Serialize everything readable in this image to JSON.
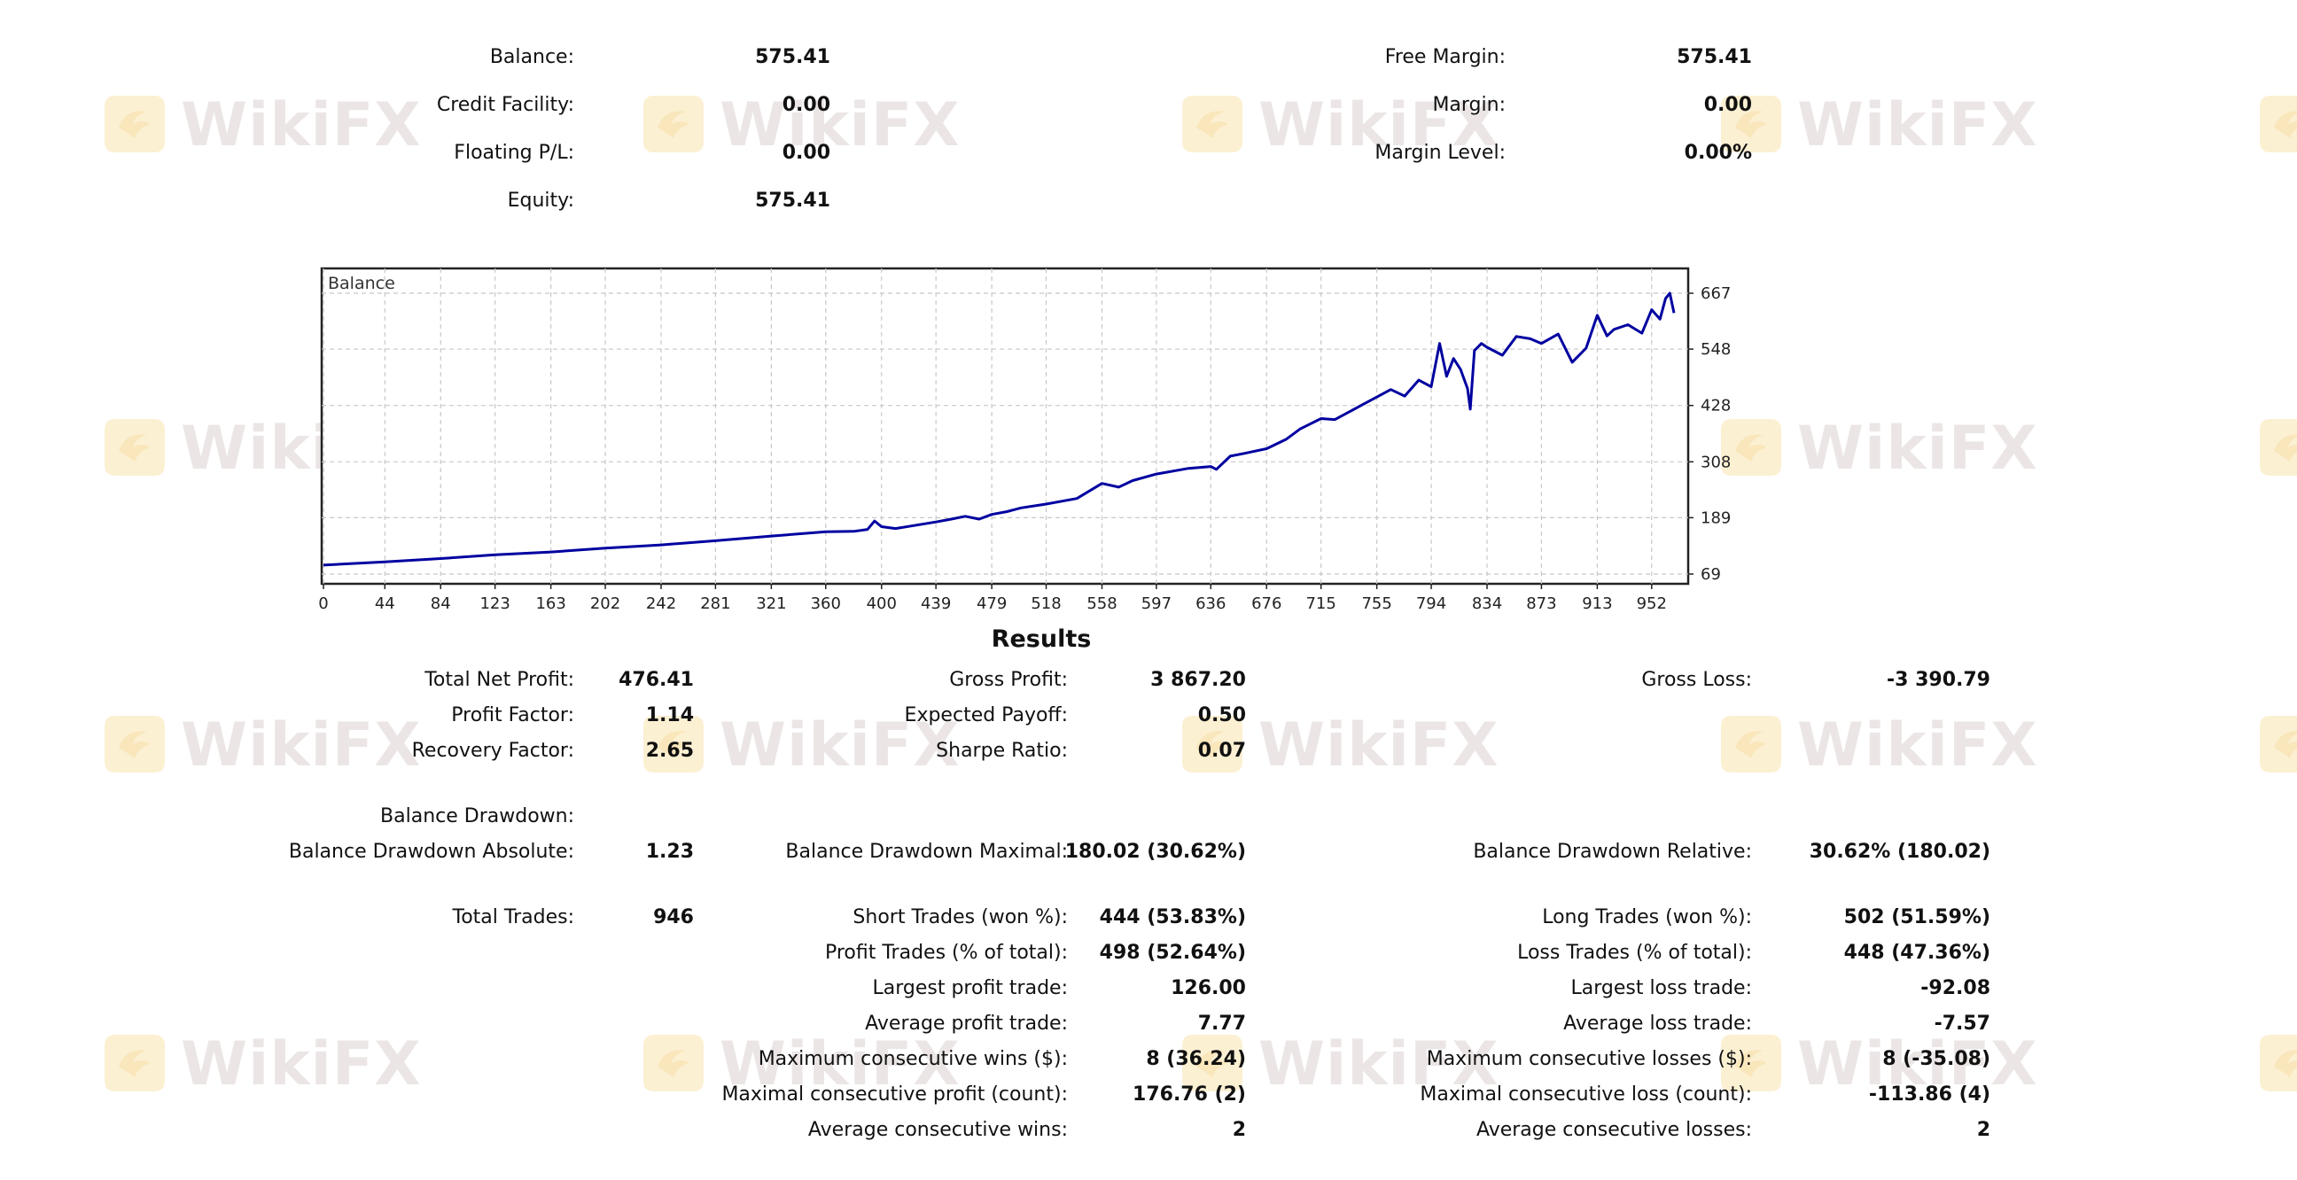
{
  "watermark": {
    "text": "WikiFX",
    "color": "#d9cfcc",
    "logo_color": "#fbe3a8"
  },
  "summary": {
    "balance_label": "Balance:",
    "balance": "575.41",
    "credit_label": "Credit Facility:",
    "credit": "0.00",
    "floating_label": "Floating P/L:",
    "floating": "0.00",
    "equity_label": "Equity:",
    "equity": "575.41",
    "free_margin_label": "Free Margin:",
    "free_margin": "575.41",
    "margin_label": "Margin:",
    "margin": "0.00",
    "margin_level_label": "Margin Level:",
    "margin_level": "0.00%"
  },
  "chart_data": {
    "type": "line",
    "title": "Balance",
    "line_color": "#0000a0",
    "x_ticks": [
      0,
      44,
      84,
      123,
      163,
      202,
      242,
      281,
      321,
      360,
      400,
      439,
      479,
      518,
      558,
      597,
      636,
      676,
      715,
      755,
      794,
      834,
      873,
      913,
      952
    ],
    "y_ticks": [
      69,
      189,
      308,
      428,
      548,
      667
    ],
    "xlim": [
      0,
      975
    ],
    "ylim": [
      69,
      667
    ],
    "series": [
      {
        "x": [
          0,
          44,
          84,
          123,
          163,
          202,
          242,
          281,
          321,
          360,
          380,
          390,
          395,
          400,
          410,
          439,
          450,
          460,
          470,
          479,
          490,
          500,
          518,
          540,
          558,
          570,
          580,
          597,
          620,
          636,
          640,
          650,
          660,
          676,
          690,
          700,
          715,
          725,
          735,
          745,
          755,
          765,
          775,
          785,
          794,
          800,
          805,
          810,
          815,
          820,
          822,
          825,
          830,
          834,
          845,
          855,
          865,
          873,
          885,
          895,
          905,
          913,
          920,
          925,
          935,
          945,
          952,
          958,
          962,
          965,
          968
        ],
        "y": [
          88,
          95,
          102,
          110,
          116,
          124,
          131,
          140,
          150,
          159,
          160,
          164,
          182,
          170,
          166,
          180,
          186,
          192,
          186,
          196,
          202,
          210,
          218,
          230,
          262,
          254,
          268,
          282,
          294,
          298,
          292,
          320,
          326,
          336,
          356,
          378,
          400,
          398,
          414,
          430,
          446,
          462,
          448,
          482,
          468,
          560,
          490,
          528,
          505,
          464,
          420,
          545,
          560,
          552,
          535,
          575,
          570,
          560,
          580,
          520,
          550,
          620,
          576,
          590,
          600,
          582,
          632,
          612,
          656,
          667,
          625
        ]
      }
    ]
  },
  "results": {
    "title": "Results",
    "total_net_profit_label": "Total Net Profit:",
    "total_net_profit": "476.41",
    "gross_profit_label": "Gross Profit:",
    "gross_profit": "3 867.20",
    "gross_loss_label": "Gross Loss:",
    "gross_loss": "-3 390.79",
    "profit_factor_label": "Profit Factor:",
    "profit_factor": "1.14",
    "expected_payoff_label": "Expected Payoff:",
    "expected_payoff": "0.50",
    "recovery_factor_label": "Recovery Factor:",
    "recovery_factor": "2.65",
    "sharpe_ratio_label": "Sharpe Ratio:",
    "sharpe_ratio": "0.07",
    "balance_drawdown_label": "Balance Drawdown:",
    "bd_absolute_label": "Balance Drawdown Absolute:",
    "bd_absolute": "1.23",
    "bd_maximal_label": "Balance Drawdown Maximal:",
    "bd_maximal": "180.02 (30.62%)",
    "bd_relative_label": "Balance Drawdown Relative:",
    "bd_relative": "30.62% (180.02)",
    "total_trades_label": "Total Trades:",
    "total_trades": "946",
    "short_trades_label": "Short Trades (won %):",
    "short_trades": "444 (53.83%)",
    "long_trades_label": "Long Trades (won %):",
    "long_trades": "502 (51.59%)",
    "profit_trades_label": "Profit Trades (% of total):",
    "profit_trades": "498 (52.64%)",
    "loss_trades_label": "Loss Trades (% of total):",
    "loss_trades": "448 (47.36%)",
    "largest_profit_label": "Largest profit trade:",
    "largest_profit": "126.00",
    "largest_loss_label": "Largest loss trade:",
    "largest_loss": "-92.08",
    "avg_profit_label": "Average profit trade:",
    "avg_profit": "7.77",
    "avg_loss_label": "Average loss trade:",
    "avg_loss": "-7.57",
    "max_consec_wins_label": "Maximum consecutive wins ($):",
    "max_consec_wins": "8 (36.24)",
    "max_consec_losses_label": "Maximum consecutive losses ($):",
    "max_consec_losses": "8 (-35.08)",
    "maximal_consec_profit_label": "Maximal consecutive profit (count):",
    "maximal_consec_profit": "176.76 (2)",
    "maximal_consec_loss_label": "Maximal consecutive loss (count):",
    "maximal_consec_loss": "-113.86 (4)",
    "avg_consec_wins_label": "Average consecutive wins:",
    "avg_consec_wins": "2",
    "avg_consec_losses_label": "Average consecutive losses:",
    "avg_consec_losses": "2"
  }
}
